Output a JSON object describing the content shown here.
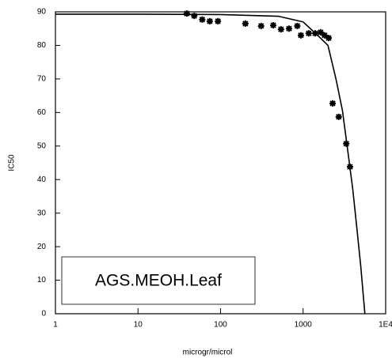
{
  "chart_data": {
    "type": "scatter",
    "annotation": "AGS.MEOH.Leaf",
    "xlabel": "microgr/microl",
    "ylabel": "IC50",
    "xscale": "log",
    "grid": false,
    "xlim": [
      1,
      10000
    ],
    "xticks": [
      1,
      10,
      100,
      1000,
      {
        "value": 10000,
        "label": "1E4"
      }
    ],
    "ylim": [
      0,
      90
    ],
    "yticks": [
      0,
      10,
      20,
      30,
      40,
      50,
      60,
      70,
      80,
      90
    ],
    "series": [
      {
        "type": "scatter",
        "color": "#000000",
        "x": [
          39,
          48,
          60,
          74,
          93,
          200,
          310,
          435,
          540,
          675,
          850,
          940,
          1170,
          1400,
          1630,
          1820,
          2040,
          2280,
          2700,
          3330,
          3700
        ],
        "values": [
          89.5,
          88.8,
          87.7,
          87.2,
          87.2,
          86.5,
          85.8,
          86,
          84.8,
          85,
          85.8,
          83,
          83.6,
          83.6,
          83.9,
          83,
          82.2,
          62.7,
          58.7,
          50.7,
          43.8
        ]
      },
      {
        "type": "line",
        "color": "#000000",
        "x": [
          1,
          10,
          100,
          500,
          1000,
          1500,
          2000,
          2500,
          3000,
          3500,
          4000,
          4500,
          5000,
          5600
        ],
        "values": [
          89.3,
          89.3,
          89.2,
          88.7,
          87,
          83,
          80,
          70,
          60.5,
          48,
          37,
          25,
          14,
          0
        ]
      }
    ]
  }
}
